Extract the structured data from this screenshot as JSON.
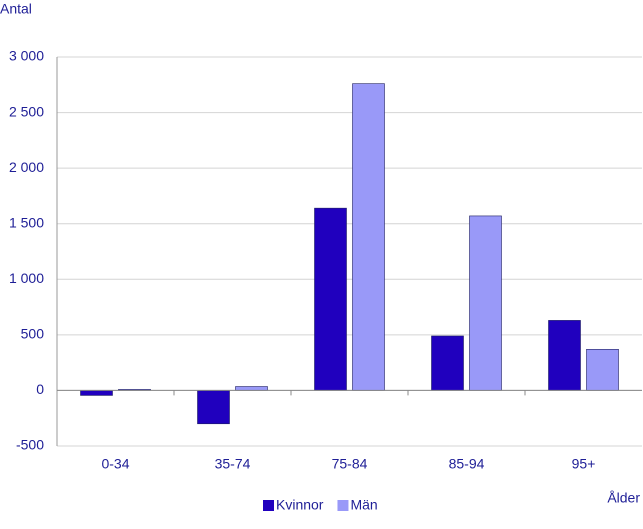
{
  "chart_data": {
    "type": "bar",
    "y_label": "Antal",
    "x_label": "Ålder",
    "categories": [
      "0-34",
      "35-74",
      "75-84",
      "85-94",
      "95+"
    ],
    "series": [
      {
        "name": "Kvinnor",
        "color": "#2000be",
        "values": [
          -45,
          -300,
          1640,
          490,
          630
        ]
      },
      {
        "name": "Män",
        "color": "#9999f8",
        "values": [
          10,
          35,
          2760,
          1570,
          370
        ]
      }
    ],
    "ylim": [
      -500,
      3000
    ],
    "yticks": [
      -500,
      0,
      500,
      {
        "value": 1000,
        "label": "1 000"
      },
      {
        "value": 1500,
        "label": "1 500"
      },
      {
        "value": 2000,
        "label": "2 000"
      },
      {
        "value": 2500,
        "label": "2 500"
      },
      {
        "value": 3000,
        "label": "3 000"
      }
    ],
    "grid": true,
    "legend": "bottom"
  }
}
